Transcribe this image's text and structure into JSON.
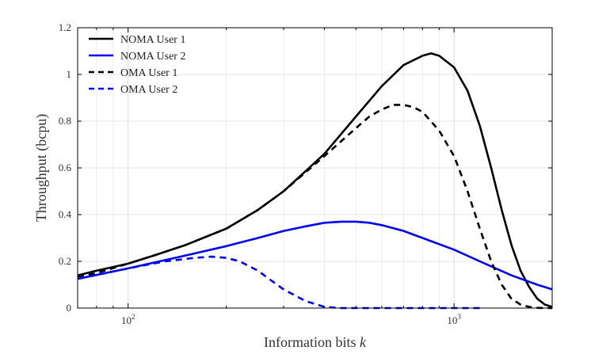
{
  "chart_data": {
    "type": "line",
    "xlabel": "Information bits ",
    "xlabel_var": "k",
    "ylabel": "Throughput (bcpu)",
    "xscale": "log",
    "xlim": [
      70,
      2000
    ],
    "ylim": [
      0,
      1.2
    ],
    "grid": true,
    "legend_position": "top-left",
    "y_ticks": [
      {
        "value": 0,
        "label": "0"
      },
      {
        "value": 0.2,
        "label": "0.2"
      },
      {
        "value": 0.4,
        "label": "0.4"
      },
      {
        "value": 0.6,
        "label": "0.6"
      },
      {
        "value": 0.8,
        "label": "0.8"
      },
      {
        "value": 1.0,
        "label": "1"
      },
      {
        "value": 1.2,
        "label": "1.2"
      }
    ],
    "x_ticks": [
      {
        "value": 100,
        "base": "10",
        "exp": "2"
      },
      {
        "value": 1000,
        "base": "10",
        "exp": "3"
      }
    ],
    "series": [
      {
        "name": "NOMA User 1",
        "color": "#000000",
        "dash": "solid",
        "x": [
          70,
          80,
          100,
          120,
          150,
          200,
          250,
          300,
          400,
          500,
          600,
          700,
          800,
          850,
          900,
          1000,
          1100,
          1200,
          1300,
          1400,
          1500,
          1600,
          1700,
          1800,
          1900,
          2000
        ],
        "y": [
          0.14,
          0.16,
          0.19,
          0.225,
          0.27,
          0.34,
          0.42,
          0.5,
          0.66,
          0.82,
          0.95,
          1.04,
          1.08,
          1.09,
          1.08,
          1.03,
          0.93,
          0.78,
          0.6,
          0.42,
          0.27,
          0.16,
          0.09,
          0.04,
          0.015,
          0.005
        ]
      },
      {
        "name": "NOMA User 2",
        "color": "#0000ff",
        "dash": "solid",
        "x": [
          70,
          100,
          150,
          200,
          250,
          300,
          350,
          400,
          450,
          500,
          550,
          600,
          700,
          800,
          1000,
          1200,
          1500,
          1800,
          2000
        ],
        "y": [
          0.125,
          0.17,
          0.225,
          0.265,
          0.3,
          0.33,
          0.35,
          0.365,
          0.37,
          0.37,
          0.365,
          0.355,
          0.33,
          0.3,
          0.25,
          0.2,
          0.14,
          0.1,
          0.08
        ]
      },
      {
        "name": "OMA User 1",
        "color": "#000000",
        "dash": "dashed",
        "x": [
          70,
          80,
          100,
          120,
          150,
          200,
          250,
          300,
          400,
          500,
          550,
          600,
          650,
          700,
          750,
          800,
          900,
          1000,
          1100,
          1200,
          1300,
          1400,
          1500,
          1600,
          1700,
          1800,
          1900,
          2000
        ],
        "y": [
          0.135,
          0.15,
          0.19,
          0.225,
          0.27,
          0.34,
          0.42,
          0.5,
          0.65,
          0.77,
          0.82,
          0.85,
          0.87,
          0.87,
          0.86,
          0.84,
          0.76,
          0.65,
          0.5,
          0.34,
          0.2,
          0.1,
          0.04,
          0.015,
          0.005,
          0.001,
          0.0,
          0.0
        ]
      },
      {
        "name": "OMA User 2",
        "color": "#0000ff",
        "dash": "dashed",
        "x": [
          70,
          100,
          130,
          160,
          180,
          200,
          220,
          250,
          280,
          300,
          350,
          400,
          450,
          500,
          600,
          800,
          1000,
          1200
        ],
        "y": [
          0.125,
          0.17,
          0.2,
          0.215,
          0.22,
          0.215,
          0.2,
          0.16,
          0.11,
          0.08,
          0.03,
          0.005,
          0.0,
          0.0,
          0.0,
          0.0,
          0.0,
          0.0
        ]
      }
    ]
  }
}
